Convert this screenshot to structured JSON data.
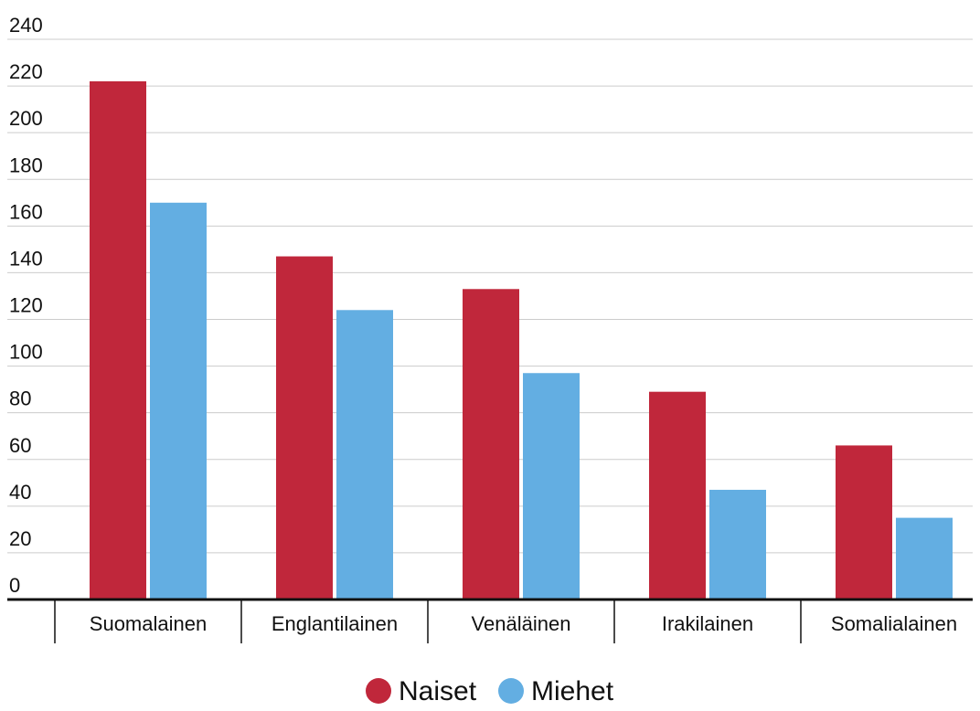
{
  "chart_data": {
    "type": "bar",
    "title": "",
    "xlabel": "",
    "ylabel": "",
    "categories": [
      "Suomalainen",
      "Englantilainen",
      "Venäläinen",
      "Irakilainen",
      "Somalialainen"
    ],
    "series": [
      {
        "name": "Naiset",
        "color": "#c0273b",
        "values": [
          222,
          147,
          133,
          89,
          66
        ]
      },
      {
        "name": "Miehet",
        "color": "#63aee2",
        "values": [
          170,
          124,
          97,
          47,
          35
        ]
      }
    ],
    "ylim": [
      0,
      240
    ],
    "yticks": [
      0,
      20,
      40,
      60,
      80,
      100,
      120,
      140,
      160,
      180,
      200,
      220,
      240
    ],
    "grid": true,
    "legend": "bottom-center"
  }
}
